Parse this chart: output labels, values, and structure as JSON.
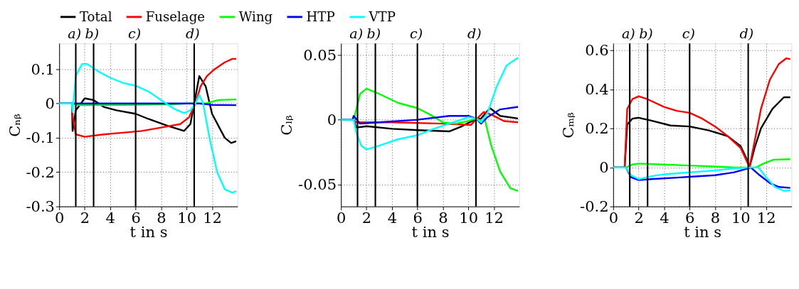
{
  "chart_data": [
    {
      "type": "line",
      "xlabel": "t in s",
      "ylabel": "Cₙᵦ",
      "xlim": [
        0,
        14
      ],
      "xticks": [
        0,
        2,
        4,
        6,
        8,
        10,
        12
      ],
      "ylim": [
        -0.3,
        0.175
      ],
      "yticks": [
        -0.3,
        -0.2,
        -0.1,
        0,
        0.1
      ],
      "grid": true,
      "legend": "top",
      "line_style": "solid",
      "ref_lines": [
        {
          "axis": "x",
          "value": 1.3,
          "label": "a)",
          "color": "#000000"
        },
        {
          "axis": "x",
          "value": 2.7,
          "label": "b)",
          "color": "#000000"
        },
        {
          "axis": "x",
          "value": 6,
          "label": "c)",
          "color": "#000000"
        },
        {
          "axis": "x",
          "value": 10.6,
          "label": "d)",
          "color": "#000000"
        }
      ],
      "series": [
        {
          "name": "Total",
          "color": "#000000",
          "x": [
            0,
            1.0,
            1.05,
            1.3,
            2.0,
            2.7,
            3.5,
            4.5,
            6,
            7,
            8.5,
            9.8,
            10.3,
            10.6,
            11.0,
            11.5,
            12,
            13,
            13.5,
            13.9
          ],
          "values": [
            0,
            0,
            -0.08,
            -0.02,
            0.015,
            0.01,
            -0.01,
            -0.02,
            -0.03,
            -0.045,
            -0.065,
            -0.08,
            -0.06,
            0.0,
            0.08,
            0.05,
            -0.03,
            -0.1,
            -0.115,
            -0.11
          ]
        },
        {
          "name": "Fuselage",
          "color": "#ff0000",
          "x": [
            0,
            1.0,
            1.02,
            1.3,
            2,
            3.5,
            5,
            6.5,
            8,
            9.5,
            10.2,
            10.7,
            11.1,
            11.6,
            12.2,
            13,
            13.6,
            13.9
          ],
          "values": [
            0,
            0,
            -0.03,
            -0.09,
            -0.097,
            -0.09,
            -0.085,
            -0.08,
            -0.07,
            -0.06,
            -0.04,
            0,
            0.05,
            0.08,
            0.1,
            0.12,
            0.13,
            0.13
          ]
        },
        {
          "name": "Wing",
          "color": "#00ff00",
          "x": [
            0,
            1.0,
            1.5,
            5,
            9,
            10,
            11.5,
            12.5,
            13.9
          ],
          "values": [
            0,
            0,
            -0.005,
            -0.004,
            -0.002,
            0,
            0,
            0.01,
            0.012
          ]
        },
        {
          "name": "HTP",
          "color": "#0000ff",
          "x": [
            0,
            1,
            6,
            11,
            12,
            13.9
          ],
          "values": [
            0,
            0,
            0,
            0,
            -0.004,
            -0.005
          ]
        },
        {
          "name": "VTP",
          "color": "#00ffff",
          "x": [
            0,
            1.0,
            1.05,
            1.3,
            1.8,
            2.2,
            3,
            4,
            5,
            6,
            7,
            8,
            9,
            9.8,
            10.3,
            10.7,
            11.0,
            11.3,
            11.8,
            12.4,
            13,
            13.6,
            13.9
          ],
          "values": [
            0,
            0,
            -0.025,
            0.08,
            0.115,
            0.115,
            0.095,
            0.075,
            0.06,
            0.052,
            0.035,
            0.01,
            -0.015,
            -0.028,
            -0.02,
            0,
            0.025,
            0,
            -0.1,
            -0.2,
            -0.25,
            -0.26,
            -0.255
          ]
        }
      ]
    },
    {
      "type": "line",
      "xlabel": "t in s",
      "ylabel": "Cₗᵦ",
      "xlim": [
        0,
        14
      ],
      "xticks": [
        0,
        2,
        4,
        6,
        8,
        10,
        12
      ],
      "ylim": [
        -0.067,
        0.059
      ],
      "yticks": [
        -0.05,
        0,
        0.05
      ],
      "grid": true,
      "line_style": "solid",
      "ref_lines": [
        {
          "axis": "x",
          "value": 1.3,
          "label": "a)",
          "color": "#000000"
        },
        {
          "axis": "x",
          "value": 2.7,
          "label": "b)",
          "color": "#000000"
        },
        {
          "axis": "x",
          "value": 6,
          "label": "c)",
          "color": "#000000"
        },
        {
          "axis": "x",
          "value": 10.6,
          "label": "d)",
          "color": "#000000"
        }
      ],
      "series": [
        {
          "name": "Total",
          "color": "#000000",
          "x": [
            0,
            1.0,
            1.2,
            2,
            4,
            6,
            8.5,
            9.5,
            10.5,
            11,
            11.7,
            12.5,
            13.9
          ],
          "values": [
            0,
            0,
            -0.006,
            -0.005,
            -0.007,
            -0.008,
            -0.009,
            -0.005,
            0,
            0.001,
            0.009,
            0.003,
            0.001
          ]
        },
        {
          "name": "Fuselage",
          "color": "#ff0000",
          "x": [
            0,
            1.0,
            1.2,
            4,
            8,
            10.2,
            10.6,
            11.2,
            11.8,
            12.8,
            13.9
          ],
          "values": [
            0,
            0,
            -0.002,
            -0.002,
            -0.003,
            -0.004,
            0,
            0.006,
            0.004,
            -0.001,
            -0.002
          ]
        },
        {
          "name": "Wing",
          "color": "#00ff00",
          "x": [
            0,
            1.0,
            1.5,
            2,
            3,
            4.5,
            6,
            7,
            8,
            9,
            10,
            10.6,
            11.0,
            11.3,
            11.8,
            12.5,
            13.3,
            13.9
          ],
          "values": [
            0,
            0,
            0.02,
            0.024,
            0.02,
            0.013,
            0.009,
            0.004,
            -0.002,
            -0.003,
            -0.001,
            0.001,
            -0.001,
            0,
            -0.02,
            -0.04,
            -0.053,
            -0.055
          ]
        },
        {
          "name": "HTP",
          "color": "#0000ff",
          "x": [
            0,
            0.9,
            1.0,
            1.5,
            3,
            6,
            8.5,
            10,
            10.6,
            11.0,
            11.5,
            12.5,
            13.9
          ],
          "values": [
            0,
            0,
            0.003,
            -0.003,
            -0.002,
            0,
            0.003,
            0.003,
            0.001,
            -0.003,
            0.002,
            0.008,
            0.01
          ]
        },
        {
          "name": "VTP",
          "color": "#00ffff",
          "x": [
            0,
            1.0,
            1.2,
            1.6,
            2,
            3,
            4.5,
            6,
            7,
            8.5,
            10,
            10.6,
            11.0,
            11.5,
            12.2,
            13,
            13.9
          ],
          "values": [
            0,
            0,
            -0.01,
            -0.02,
            -0.023,
            -0.02,
            -0.015,
            -0.012,
            -0.008,
            -0.003,
            0.002,
            0.001,
            -0.002,
            0.005,
            0.025,
            0.042,
            0.048
          ]
        }
      ]
    },
    {
      "type": "line",
      "xlabel": "t in s",
      "ylabel": "Cₘᵦ",
      "xlim": [
        0,
        14
      ],
      "xticks": [
        0,
        2,
        4,
        6,
        8,
        10,
        12
      ],
      "ylim": [
        -0.2,
        0.636
      ],
      "yticks": [
        -0.2,
        0,
        0.2,
        0.4,
        0.6
      ],
      "grid": true,
      "line_style": "solid",
      "ref_lines": [
        {
          "axis": "x",
          "value": 1.3,
          "label": "a)",
          "color": "#000000"
        },
        {
          "axis": "x",
          "value": 2.7,
          "label": "b)",
          "color": "#000000"
        },
        {
          "axis": "x",
          "value": 6,
          "label": "c)",
          "color": "#000000"
        },
        {
          "axis": "x",
          "value": 10.6,
          "label": "d)",
          "color": "#000000"
        }
      ],
      "series": [
        {
          "name": "Total",
          "color": "#000000",
          "x": [
            0,
            0.9,
            1.1,
            1.5,
            2,
            3,
            4.5,
            6,
            7.5,
            9,
            10,
            10.5,
            10.7,
            11.1,
            11.6,
            12.5,
            13.4,
            13.9
          ],
          "values": [
            0,
            0,
            0.22,
            0.25,
            0.255,
            0.24,
            0.215,
            0.21,
            0.19,
            0.16,
            0.11,
            0.04,
            0,
            0.1,
            0.2,
            0.3,
            0.36,
            0.36
          ]
        },
        {
          "name": "Fuselage",
          "color": "#ff0000",
          "x": [
            0,
            0.9,
            1.1,
            1.5,
            2,
            2.7,
            4,
            5,
            6,
            7,
            8,
            9,
            10,
            10.5,
            10.7,
            11,
            11.6,
            12.3,
            13,
            13.6,
            13.9
          ],
          "values": [
            0,
            0,
            0.3,
            0.35,
            0.365,
            0.35,
            0.31,
            0.29,
            0.28,
            0.25,
            0.21,
            0.16,
            0.1,
            0.03,
            0,
            0.1,
            0.3,
            0.45,
            0.53,
            0.56,
            0.555
          ]
        },
        {
          "name": "Wing",
          "color": "#00ff00",
          "x": [
            0,
            1.0,
            1.5,
            2,
            4,
            6,
            8,
            9.5,
            11.2,
            11.8,
            12.6,
            13.9
          ],
          "values": [
            0,
            0,
            0.015,
            0.02,
            0.015,
            0.01,
            0.005,
            0,
            0,
            0.02,
            0.04,
            0.042
          ]
        },
        {
          "name": "HTP",
          "color": "#0000ff",
          "x": [
            0,
            1.0,
            1.4,
            2,
            3,
            5,
            6,
            8,
            9.5,
            10.6,
            10.8,
            11.5,
            12.3,
            13,
            13.9
          ],
          "values": [
            0,
            0,
            -0.05,
            -0.065,
            -0.06,
            -0.052,
            -0.048,
            -0.04,
            -0.025,
            -0.005,
            0,
            -0.04,
            -0.08,
            -0.1,
            -0.105
          ]
        },
        {
          "name": "VTP",
          "color": "#00ffff",
          "x": [
            0,
            1.0,
            1.4,
            2,
            3,
            4,
            6,
            8,
            9.5,
            10.7,
            11.4,
            12,
            12.7,
            13.4,
            13.9
          ],
          "values": [
            0,
            0,
            -0.04,
            -0.06,
            -0.045,
            -0.035,
            -0.025,
            -0.015,
            -0.005,
            0,
            0,
            -0.05,
            -0.1,
            -0.12,
            -0.118
          ]
        }
      ]
    }
  ]
}
